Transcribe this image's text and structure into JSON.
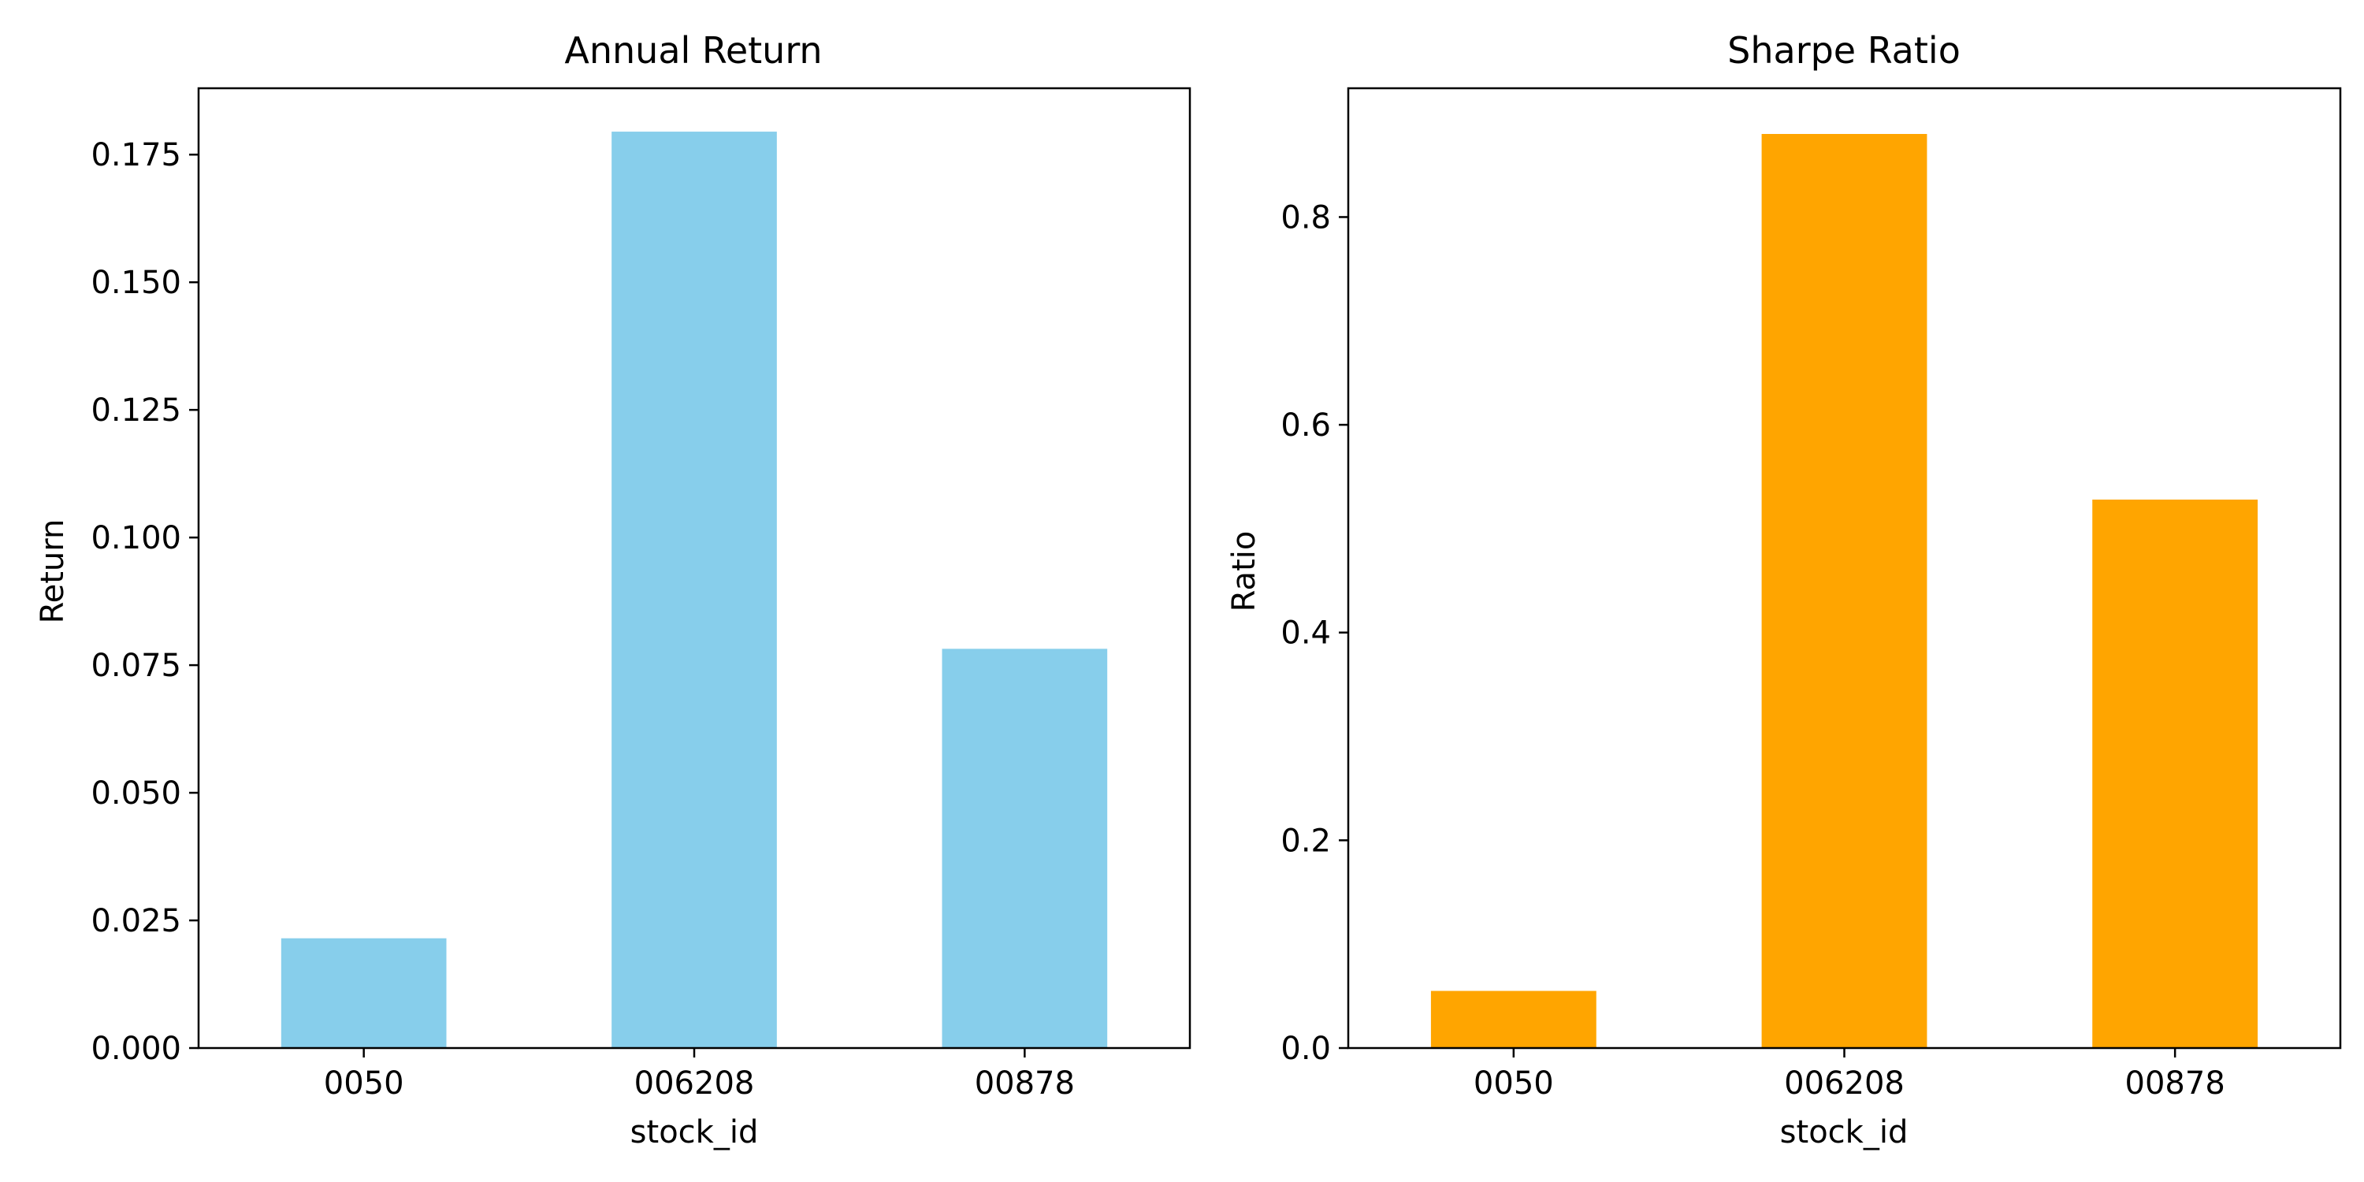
{
  "chart_data": [
    {
      "type": "bar",
      "title": "Annual Return",
      "xlabel": "stock_id",
      "ylabel": "Return",
      "categories": [
        "0050",
        "006208",
        "00878"
      ],
      "values": [
        0.0215,
        0.1795,
        0.0782
      ],
      "ylim": [
        0,
        0.188
      ],
      "yticks": [
        0.0,
        0.025,
        0.05,
        0.075,
        0.1,
        0.125,
        0.15,
        0.175
      ],
      "ytick_labels": [
        "0.000",
        "0.025",
        "0.050",
        "0.075",
        "0.100",
        "0.125",
        "0.150",
        "0.175"
      ],
      "color": "#87ceeb",
      "grid": false
    },
    {
      "type": "bar",
      "title": "Sharpe Ratio",
      "xlabel": "stock_id",
      "ylabel": "Ratio",
      "categories": [
        "0050",
        "006208",
        "00878"
      ],
      "values": [
        0.055,
        0.88,
        0.528
      ],
      "ylim": [
        0,
        0.924
      ],
      "yticks": [
        0.0,
        0.2,
        0.4,
        0.6,
        0.8
      ],
      "ytick_labels": [
        "0.0",
        "0.2",
        "0.4",
        "0.6",
        "0.8"
      ],
      "color": "#ffa500",
      "grid": false
    }
  ]
}
